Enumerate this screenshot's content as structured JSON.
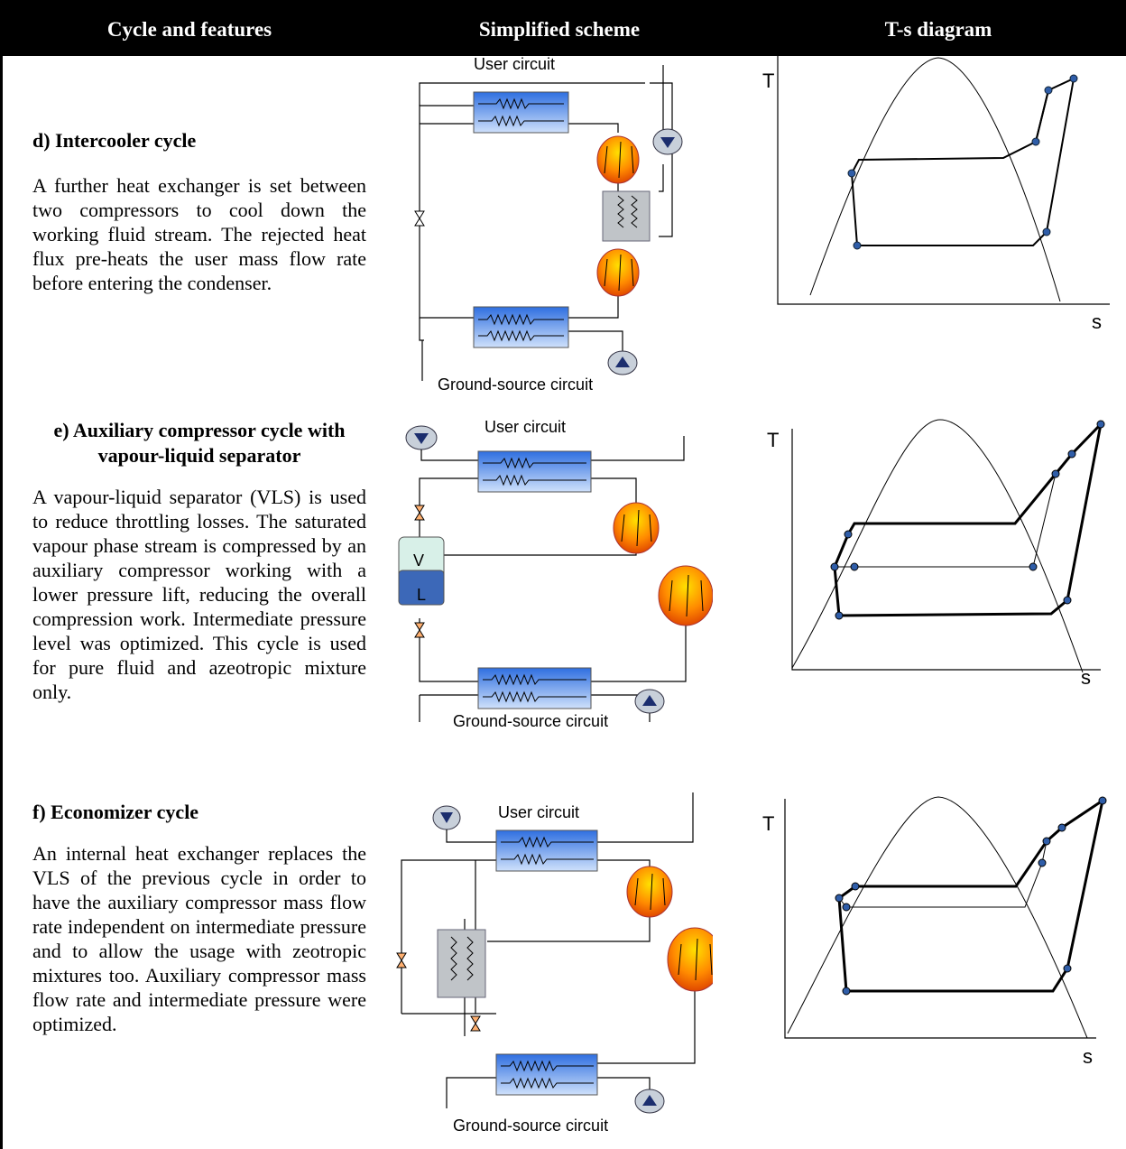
{
  "header": {
    "col1": "Cycle and features",
    "col2": "Simplified scheme",
    "col3": "T-s diagram"
  },
  "sections": [
    {
      "title": "d) Intercooler cycle",
      "body": "A further heat exchanger is set between two compressors to cool down the working fluid stream. The rejected heat flux pre-heats the user mass flow rate before entering the condenser.",
      "scheme": {
        "user_label": "User circuit",
        "ground_label": "Ground-source circuit"
      },
      "ts": {
        "t_label": "T",
        "s_label": "s"
      }
    },
    {
      "title": "e) Auxiliary compressor cycle with vapour-liquid separator",
      "body": "A vapour-liquid separator (VLS) is used to reduce throttling losses. The saturated vapour phase stream is compressed by an auxiliary compressor working with a lower pressure lift, reducing the overall compression work. Intermediate pressure level was optimized. This cycle is used for pure fluid and azeotropic mixture only.",
      "scheme": {
        "user_label": "User circuit",
        "ground_label": "Ground-source circuit",
        "v_label": "V",
        "l_label": "L"
      },
      "ts": {
        "t_label": "T",
        "s_label": "s"
      }
    },
    {
      "title": "f) Economizer cycle",
      "body": "An internal heat exchanger replaces the VLS of the previous cycle in order to have the auxiliary compressor mass flow rate independent on intermediate pressure and to allow the usage with zeotropic mixtures too. Auxiliary compressor mass flow rate and intermediate pressure were optimized.",
      "scheme": {
        "user_label": "User circuit",
        "ground_label": "Ground-source circuit"
      },
      "ts": {
        "t_label": "T",
        "s_label": "s"
      }
    }
  ],
  "colors": {
    "hx_blue": "#3a78e0",
    "compressor_orange": "#ff7a00",
    "pump_gray": "#c8d0da",
    "pump_arrow": "#1c2e6e"
  }
}
